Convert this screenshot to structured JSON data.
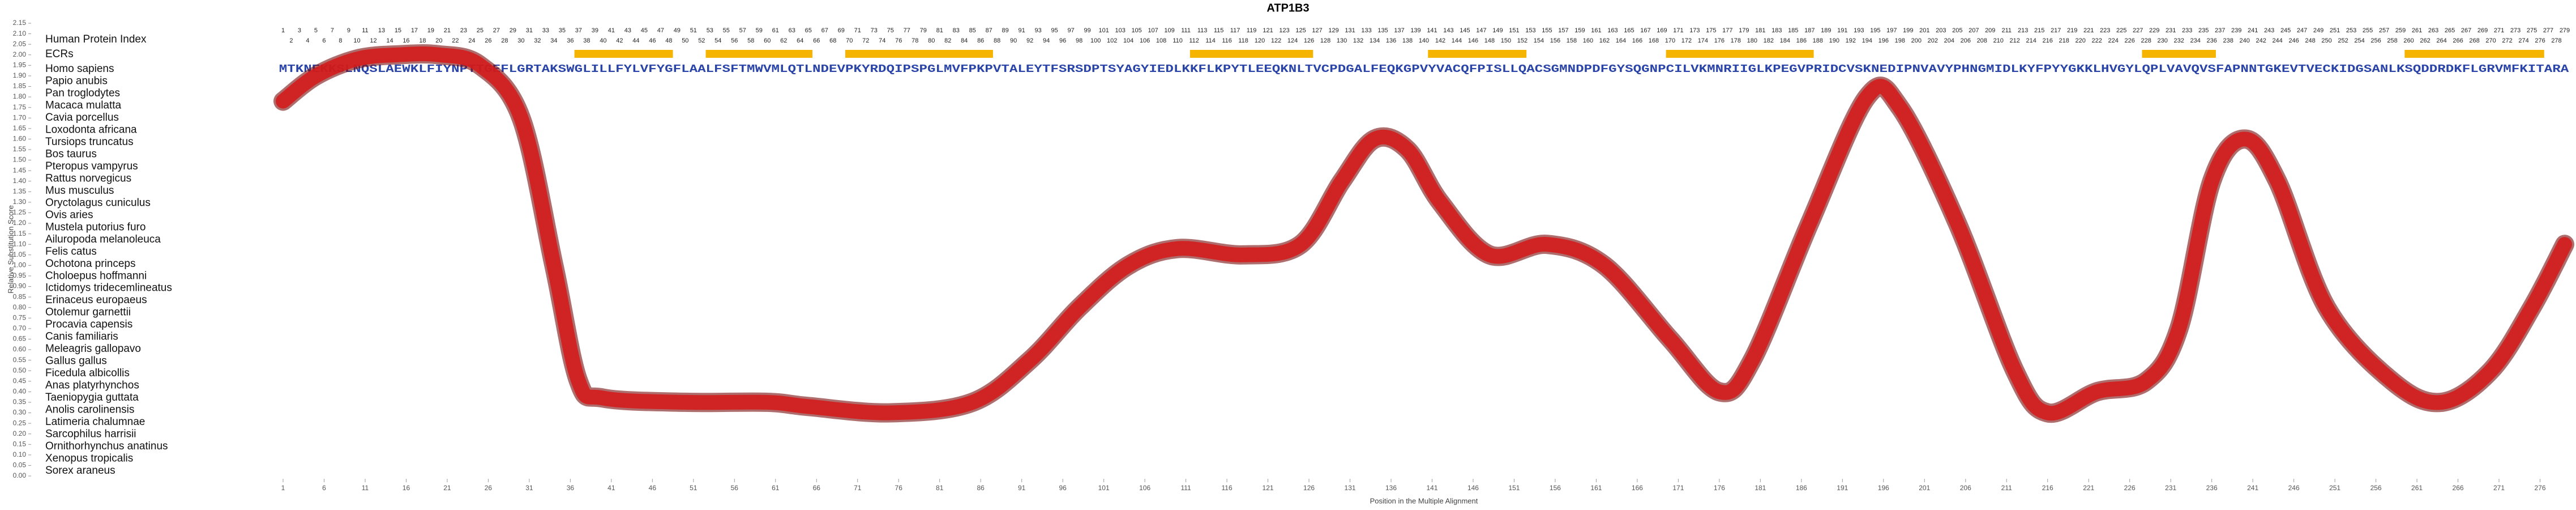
{
  "chart_data": {
    "type": "line",
    "title": "ATP1B3",
    "x_label": "Position in the Multiple Alignment",
    "y_label": "Relative Substitution Score",
    "color": "#d41c1c",
    "x": [
      1,
      5,
      10,
      15,
      20,
      25,
      30,
      34,
      37,
      40,
      50,
      60,
      65,
      75,
      85,
      92,
      98,
      104,
      110,
      118,
      125,
      130,
      134,
      138,
      142,
      148,
      155,
      162,
      170,
      176,
      180,
      187,
      194,
      198,
      205,
      212,
      216,
      222,
      228,
      232,
      236,
      240,
      244,
      250,
      258,
      264,
      270,
      275,
      279
    ],
    "values": [
      1.78,
      1.9,
      1.98,
      2.0,
      2.0,
      1.95,
      1.7,
      1.0,
      0.45,
      0.37,
      0.35,
      0.35,
      0.33,
      0.3,
      0.35,
      0.55,
      0.8,
      1.0,
      1.08,
      1.05,
      1.1,
      1.4,
      1.6,
      1.55,
      1.3,
      1.05,
      1.1,
      1.0,
      0.65,
      0.4,
      0.55,
      1.2,
      1.8,
      1.75,
      1.2,
      0.5,
      0.3,
      0.4,
      0.45,
      0.7,
      1.4,
      1.6,
      1.4,
      0.8,
      0.45,
      0.35,
      0.5,
      0.8,
      1.1
    ],
    "xlim": [
      1,
      279
    ],
    "ylim": [
      0,
      2.15
    ],
    "xticks": [
      1,
      6,
      11,
      16,
      21,
      26,
      31,
      36,
      41,
      46,
      51,
      56,
      61,
      66,
      71,
      76,
      81,
      86,
      91,
      96,
      101,
      106,
      111,
      116,
      121,
      126,
      131,
      136,
      141,
      146,
      151,
      156,
      161,
      166,
      171,
      176,
      181,
      186,
      191,
      196,
      201,
      206,
      211,
      216,
      221,
      226,
      231,
      236,
      241,
      246,
      251,
      256,
      261,
      266,
      271,
      276
    ],
    "yticks": [
      {
        "value": 0,
        "label": "0.00"
      },
      {
        "value": 0.05,
        "label": "0.05"
      },
      {
        "value": 0.1,
        "label": "0.10"
      },
      {
        "value": 0.15,
        "label": "0.15"
      },
      {
        "value": 0.2,
        "label": "0.20"
      },
      {
        "value": 0.25,
        "label": "0.25"
      },
      {
        "value": 0.3,
        "label": "0.30"
      },
      {
        "value": 0.35,
        "label": "0.35"
      },
      {
        "value": 0.4,
        "label": "0.40"
      },
      {
        "value": 0.45,
        "label": "0.45"
      },
      {
        "value": 0.5,
        "label": "0.50"
      },
      {
        "value": 0.55,
        "label": "0.55"
      },
      {
        "value": 0.6,
        "label": "0.60"
      },
      {
        "value": 0.65,
        "label": "0.65"
      },
      {
        "value": 0.7,
        "label": "0.70"
      },
      {
        "value": 0.75,
        "label": "0.75"
      },
      {
        "value": 0.8,
        "label": "0.80"
      },
      {
        "value": 0.85,
        "label": "0.85"
      },
      {
        "value": 0.9,
        "label": "0.90"
      },
      {
        "value": 0.95,
        "label": "0.95"
      },
      {
        "value": 1,
        "label": "1.00"
      },
      {
        "value": 1.05,
        "label": "1.05"
      },
      {
        "value": 1.1,
        "label": "1.10"
      },
      {
        "value": 1.15,
        "label": "1.15"
      },
      {
        "value": 1.2,
        "label": "1.20"
      },
      {
        "value": 1.25,
        "label": "1.25"
      },
      {
        "value": 1.3,
        "label": "1.30"
      },
      {
        "value": 1.35,
        "label": "1.35"
      },
      {
        "value": 1.4,
        "label": "1.40"
      },
      {
        "value": 1.45,
        "label": "1.45"
      },
      {
        "value": 1.5,
        "label": "1.50"
      },
      {
        "value": 1.55,
        "label": "1.55"
      },
      {
        "value": 1.6,
        "label": "1.60"
      },
      {
        "value": 1.65,
        "label": "1.65"
      },
      {
        "value": 1.7,
        "label": "1.70"
      },
      {
        "value": 1.75,
        "label": "1.75"
      },
      {
        "value": 1.8,
        "label": "1.80"
      },
      {
        "value": 1.85,
        "label": "1.85"
      },
      {
        "value": 1.9,
        "label": "1.90"
      },
      {
        "value": 1.95,
        "label": "1.95"
      },
      {
        "value": 2,
        "label": "2.00"
      },
      {
        "value": 2.05,
        "label": "2.05"
      },
      {
        "value": 2.1,
        "label": "2.10"
      },
      {
        "value": 2.15,
        "label": "2.15"
      }
    ]
  },
  "alignment": {
    "index_label": "Human Protein Index",
    "ecr_label": "ECRs",
    "ecr_color": "#f5b400",
    "ecrs": [
      [
        37,
        48
      ],
      [
        53,
        65
      ],
      [
        70,
        87
      ],
      [
        112,
        126
      ],
      [
        141,
        152
      ],
      [
        170,
        187
      ],
      [
        228,
        236
      ],
      [
        260,
        276
      ]
    ],
    "index": [
      1,
      2,
      3,
      4,
      5,
      6,
      7,
      8,
      9,
      10,
      11,
      12,
      13,
      14,
      15,
      16,
      17,
      18,
      19,
      20,
      21,
      22,
      23,
      24,
      25,
      26,
      27,
      28,
      29,
      30,
      31,
      32,
      33,
      34,
      35,
      36,
      37,
      38,
      39,
      40,
      41,
      42,
      43,
      44,
      45,
      46,
      47,
      48,
      49,
      50,
      51,
      52,
      53,
      54,
      55,
      56,
      57,
      58,
      59,
      60,
      61,
      62,
      63,
      64,
      65,
      66,
      67,
      68,
      69,
      70,
      71,
      72,
      73,
      74,
      75,
      76,
      77,
      78,
      79,
      80,
      81,
      82,
      83,
      84,
      85,
      86,
      87,
      88,
      89,
      90,
      91,
      92,
      93,
      94,
      95,
      96,
      97,
      98,
      99,
      100,
      101,
      102,
      103,
      104,
      105,
      106,
      107,
      108,
      109,
      110,
      111,
      112,
      113,
      114,
      115,
      116,
      117,
      118,
      119,
      120,
      121,
      122,
      123,
      124,
      125,
      126,
      127,
      128,
      129,
      130,
      131,
      132,
      133,
      134,
      135,
      136,
      137,
      138,
      139,
      140,
      141,
      142,
      143,
      144,
      145,
      146,
      147,
      148,
      149,
      150,
      151,
      152,
      153,
      154,
      155,
      156,
      157,
      158,
      159,
      160,
      161,
      162,
      163,
      164,
      165,
      166,
      167,
      168,
      169,
      170,
      171,
      172,
      173,
      174,
      175,
      176,
      177,
      178,
      179,
      180,
      181,
      182,
      183,
      184,
      185,
      186,
      187,
      188,
      189,
      190,
      191,
      192,
      193,
      194,
      195,
      196,
      197,
      198,
      199,
      200,
      201,
      202,
      203,
      204,
      205,
      206,
      207,
      208,
      209,
      210,
      211,
      212,
      213,
      214,
      215,
      216,
      217,
      218,
      219,
      220,
      221,
      222,
      223,
      224,
      225,
      226,
      227,
      228,
      229,
      230,
      231,
      232,
      233,
      234,
      235,
      236,
      237,
      238,
      239,
      240,
      241,
      242,
      243,
      244,
      245,
      246,
      247,
      248,
      249,
      250,
      251,
      252,
      253,
      254,
      255,
      256,
      257,
      258,
      259,
      260,
      261,
      262,
      263,
      264,
      265,
      266,
      267,
      268,
      269,
      270,
      271,
      272,
      273,
      274,
      275,
      276,
      277,
      278,
      279
    ],
    "species": [
      "Homo sapiens",
      "Papio anubis",
      "Pan troglodytes",
      "Macaca mulatta",
      "Cavia porcellus",
      "Loxodonta africana",
      "Tursiops truncatus",
      "Bos taurus",
      "Pteropus vampyrus",
      "Rattus norvegicus",
      "Mus musculus",
      "Oryctolagus cuniculus",
      "Ovis aries",
      "Mustela putorius furo",
      "Ailuropoda melanoleuca",
      "Felis catus",
      "Ochotona princeps",
      "Choloepus hoffmanni",
      "Ictidomys tridecemlineatus",
      "Erinaceus europaeus",
      "Otolemur garnettii",
      "Procavia capensis",
      "Canis familiaris",
      "Meleagris gallopavo",
      "Gallus gallus",
      "Ficedula albicollis",
      "Anas platyrhynchos",
      "Taeniopygia guttata",
      "Anolis carolinensis",
      "Latimeria chalumnae",
      "Sarcophilus harrisii",
      "Ornithorhynchus anatinus",
      "Xenopus tropicalis",
      "Sorex araneus"
    ],
    "human_sequence": "MTKNEKKSLNQSLAEWKLFIYNPTTGEFLGRTAKSWGLILLFYLVFYGFLAALFSFTMWVMLQTLNDEVPKYRDQIPSPGLMVFPKPVTALEYTFSRSDPTSYAGYIEDLKKFLKPYTLEEQKNLTVCPDGALFEQKGPVYVACQFPISLLQACSGMNDPDFGYSQGNPCILVKMNRIIGLKPEGVPRIDCVSKNEDIPNVAVYPHNGMIDLKYFPYYGKKLHVGYLQPLVAVQVSFAPNNTGKEVTVECKIDGSANLKSQDDRDKFLGRVMFKITARA"
  }
}
